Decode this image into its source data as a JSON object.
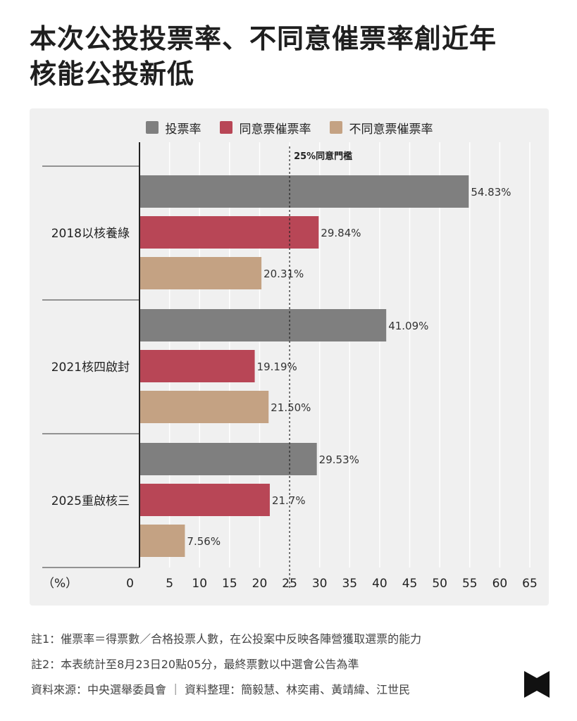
{
  "title_line1": "本次公投投票率、不同意催票率創近年",
  "title_line2": "核能公投新低",
  "legend": [
    {
      "name": "投票率",
      "color": "#7f7f7f"
    },
    {
      "name": "同意票催票率",
      "color": "#b84656"
    },
    {
      "name": "不同意票催票率",
      "color": "#c4a283"
    }
  ],
  "threshold_label": "25%同意門檻",
  "unit_label": "（%）",
  "chart_data": {
    "type": "bar",
    "orientation": "horizontal",
    "categories": [
      "2018以核養綠",
      "2021核四啟封",
      "2025重啟核三"
    ],
    "series": [
      {
        "name": "投票率",
        "values": [
          54.83,
          41.09,
          29.53
        ],
        "labels": [
          "54.83%",
          "41.09%",
          "29.53%"
        ]
      },
      {
        "name": "同意票催票率",
        "values": [
          29.84,
          19.19,
          21.7
        ],
        "labels": [
          "29.84%",
          "19.19%",
          "21.7%"
        ]
      },
      {
        "name": "不同意票催票率",
        "values": [
          20.31,
          21.5,
          7.56
        ],
        "labels": [
          "20.31%",
          "21.50%",
          "7.56%"
        ]
      }
    ],
    "x_ticks": [
      0,
      5,
      10,
      15,
      20,
      25,
      30,
      35,
      40,
      45,
      50,
      55,
      60,
      65
    ],
    "xlim": [
      0,
      65
    ],
    "threshold": 25,
    "grid": true,
    "legend_position": "top"
  },
  "notes": [
    "註1：催票率＝得票數／合格投票人數，在公投案中反映各陣營獲取選票的能力",
    "註2：本表統計至8月23日20點05分，最終票數以中選會公告為準",
    "資料來源：中央選舉委員會 ｜ 資料整理：簡毅慧、林奕甫、黃靖緯、江世民"
  ]
}
